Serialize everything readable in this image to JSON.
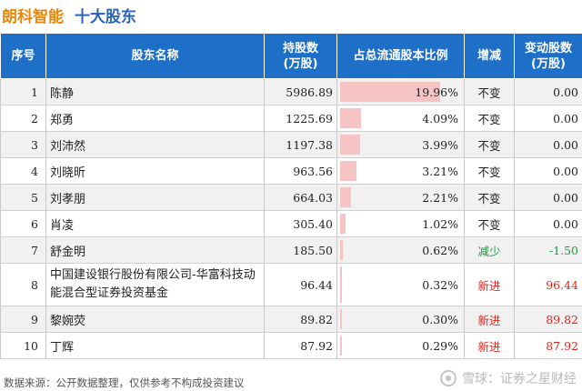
{
  "title": {
    "company": "朗科智能",
    "subject": "十大股东"
  },
  "headers": {
    "rank": "序号",
    "name": "股东名称",
    "shares": "持股数\n(万股)",
    "pct": "占总流通股本比例",
    "change": "增减",
    "delta": "变动股数\n(万股)"
  },
  "rows": [
    {
      "rank": "1",
      "name": "陈静",
      "shares": "5986.89",
      "pct": "19.96%",
      "pct_value": 19.96,
      "change": "不变",
      "delta": "0.00"
    },
    {
      "rank": "2",
      "name": "郑勇",
      "shares": "1225.69",
      "pct": "4.09%",
      "pct_value": 4.09,
      "change": "不变",
      "delta": "0.00"
    },
    {
      "rank": "3",
      "name": "刘沛然",
      "shares": "1197.38",
      "pct": "3.99%",
      "pct_value": 3.99,
      "change": "不变",
      "delta": "0.00"
    },
    {
      "rank": "4",
      "name": "刘晓昕",
      "shares": "963.56",
      "pct": "3.21%",
      "pct_value": 3.21,
      "change": "不变",
      "delta": "0.00"
    },
    {
      "rank": "5",
      "name": "刘孝朋",
      "shares": "664.03",
      "pct": "2.21%",
      "pct_value": 2.21,
      "change": "不变",
      "delta": "0.00"
    },
    {
      "rank": "6",
      "name": "肖凌",
      "shares": "305.40",
      "pct": "1.02%",
      "pct_value": 1.02,
      "change": "不变",
      "delta": "0.00"
    },
    {
      "rank": "7",
      "name": "舒金明",
      "shares": "185.50",
      "pct": "0.62%",
      "pct_value": 0.62,
      "change": "减少",
      "delta": "-1.50"
    },
    {
      "rank": "8",
      "name": "中国建设银行股份有限公司-华富科技动能混合型证券投资基金",
      "shares": "96.44",
      "pct": "0.32%",
      "pct_value": 0.32,
      "change": "新进",
      "delta": "96.44"
    },
    {
      "rank": "9",
      "name": "黎婉荧",
      "shares": "89.82",
      "pct": "0.30%",
      "pct_value": 0.3,
      "change": "新进",
      "delta": "89.82"
    },
    {
      "rank": "10",
      "name": "丁辉",
      "shares": "87.92",
      "pct": "0.29%",
      "pct_value": 0.29,
      "change": "新进",
      "delta": "87.92"
    }
  ],
  "change_colors": {
    "不变": "#222222",
    "减少": "#1a9a3a",
    "新进": "#e0251b"
  },
  "bar_color": "#f6c4c4",
  "footer": "数据来源：公开数据整理，仅供参考不构成投资建议",
  "brand": {
    "name": "雪球：证券之星财经",
    "logo_icon": "xueqiu-logo-icon"
  }
}
